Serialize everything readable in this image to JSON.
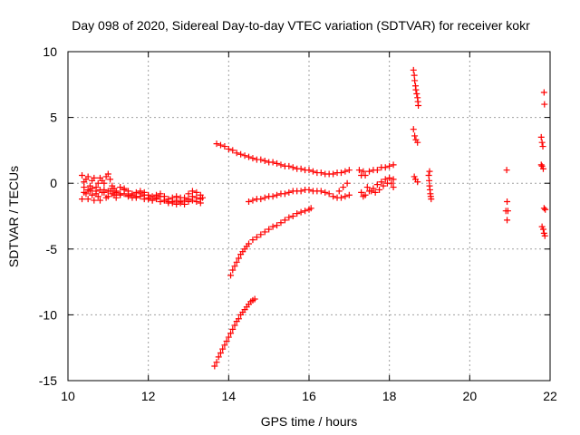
{
  "chart_data": {
    "type": "scatter",
    "title": "Day 098 of 2020, Sidereal Day-to-day VTEC variation (SDTVAR) for receiver kokr",
    "xlabel": "GPS time / hours",
    "ylabel": "SDTVAR / TECUs",
    "xlim": [
      10,
      22
    ],
    "ylim": [
      -15,
      10
    ],
    "xticks": [
      10,
      12,
      14,
      16,
      18,
      20,
      22
    ],
    "yticks": [
      -15,
      -10,
      -5,
      0,
      5,
      10
    ],
    "xtick_labels": [
      "10",
      "12",
      "14",
      "16",
      "18",
      "20",
      "22"
    ],
    "ytick_labels": [
      "-15",
      "-10",
      "-5",
      "0",
      "5",
      "10"
    ],
    "grid": true,
    "marker": "+",
    "color": "#ff0000",
    "series": [
      {
        "points": [
          [
            10.35,
            0.6
          ],
          [
            10.4,
            0.1
          ],
          [
            10.45,
            -0.8
          ],
          [
            10.5,
            -1.2
          ],
          [
            10.55,
            -0.6
          ],
          [
            10.6,
            0.2
          ],
          [
            10.65,
            0.4
          ],
          [
            10.7,
            -0.3
          ],
          [
            10.75,
            -1.0
          ],
          [
            10.8,
            -1.3
          ],
          [
            10.85,
            -0.7
          ],
          [
            10.9,
            0.0
          ],
          [
            10.95,
            0.5
          ],
          [
            11.0,
            0.7
          ],
          [
            11.05,
            0.3
          ],
          [
            11.1,
            -0.4
          ],
          [
            11.15,
            -0.9
          ],
          [
            11.2,
            -1.1
          ],
          [
            11.3,
            -0.8
          ],
          [
            11.4,
            -0.5
          ],
          [
            11.5,
            -0.6
          ],
          [
            11.6,
            -0.8
          ],
          [
            11.7,
            -0.7
          ],
          [
            11.8,
            -0.6
          ],
          [
            11.9,
            -0.7
          ],
          [
            12.0,
            -0.9
          ],
          [
            12.1,
            -1.0
          ],
          [
            12.2,
            -0.9
          ],
          [
            12.3,
            -0.8
          ],
          [
            12.4,
            -1.0
          ],
          [
            12.5,
            -1.2
          ],
          [
            12.6,
            -1.1
          ],
          [
            12.7,
            -1.0
          ],
          [
            12.8,
            -1.1
          ],
          [
            12.9,
            -1.3
          ],
          [
            13.0,
            -1.2
          ],
          [
            13.1,
            -1.0
          ],
          [
            13.2,
            -1.1
          ],
          [
            13.3,
            -1.2
          ]
        ]
      },
      {
        "points": [
          [
            10.35,
            -1.2
          ],
          [
            10.4,
            -0.7
          ],
          [
            10.45,
            0.3
          ],
          [
            10.5,
            0.5
          ],
          [
            10.55,
            -0.2
          ],
          [
            10.6,
            -0.9
          ],
          [
            10.65,
            -1.3
          ],
          [
            10.7,
            -0.8
          ],
          [
            10.75,
            0.0
          ],
          [
            10.8,
            0.4
          ],
          [
            10.85,
            0.2
          ],
          [
            10.9,
            -0.5
          ],
          [
            10.95,
            -1.1
          ],
          [
            11.0,
            -1.0
          ],
          [
            11.05,
            -0.6
          ],
          [
            11.1,
            -0.2
          ],
          [
            11.15,
            -0.4
          ],
          [
            11.2,
            -0.6
          ],
          [
            11.3,
            -0.3
          ],
          [
            11.4,
            -0.4
          ],
          [
            11.5,
            -0.9
          ],
          [
            11.6,
            -1.1
          ],
          [
            11.7,
            -1.0
          ],
          [
            11.8,
            -0.8
          ],
          [
            11.9,
            -0.9
          ],
          [
            12.0,
            -1.2
          ],
          [
            12.1,
            -1.3
          ],
          [
            12.2,
            -1.1
          ],
          [
            12.3,
            -1.0
          ],
          [
            12.4,
            -1.3
          ],
          [
            12.5,
            -1.5
          ],
          [
            12.6,
            -1.4
          ],
          [
            12.7,
            -1.3
          ],
          [
            12.8,
            -1.5
          ],
          [
            12.9,
            -1.6
          ],
          [
            13.0,
            -1.4
          ],
          [
            13.1,
            -1.3
          ],
          [
            13.2,
            -1.4
          ],
          [
            13.3,
            -1.5
          ]
        ]
      },
      {
        "points": [
          [
            10.4,
            -0.3
          ],
          [
            10.5,
            -0.5
          ],
          [
            10.6,
            -0.4
          ],
          [
            10.7,
            -0.6
          ],
          [
            10.8,
            -0.5
          ],
          [
            10.9,
            -0.7
          ],
          [
            11.0,
            -0.6
          ],
          [
            11.1,
            -0.8
          ],
          [
            11.2,
            -0.7
          ],
          [
            11.3,
            -0.9
          ],
          [
            11.4,
            -0.8
          ],
          [
            11.5,
            -1.0
          ],
          [
            11.6,
            -0.9
          ],
          [
            11.7,
            -1.1
          ],
          [
            11.8,
            -1.0
          ],
          [
            11.9,
            -1.2
          ],
          [
            12.0,
            -1.1
          ],
          [
            12.1,
            -1.3
          ],
          [
            12.2,
            -1.2
          ],
          [
            12.3,
            -1.4
          ],
          [
            12.4,
            -1.3
          ],
          [
            12.5,
            -1.4
          ],
          [
            12.6,
            -1.5
          ],
          [
            12.7,
            -1.6
          ],
          [
            12.8,
            -1.4
          ],
          [
            12.9,
            -1.1
          ],
          [
            13.0,
            -0.8
          ],
          [
            13.1,
            -0.6
          ],
          [
            13.2,
            -0.7
          ],
          [
            13.3,
            -0.9
          ],
          [
            13.35,
            -1.1
          ]
        ]
      },
      {
        "points": [
          [
            13.7,
            3.0
          ],
          [
            13.8,
            2.9
          ],
          [
            13.9,
            2.8
          ],
          [
            14.0,
            2.6
          ],
          [
            14.1,
            2.5
          ],
          [
            14.2,
            2.3
          ],
          [
            14.3,
            2.2
          ],
          [
            14.4,
            2.1
          ],
          [
            14.5,
            2.0
          ],
          [
            14.6,
            1.9
          ],
          [
            14.7,
            1.8
          ],
          [
            14.8,
            1.8
          ],
          [
            14.9,
            1.7
          ],
          [
            15.0,
            1.6
          ],
          [
            15.1,
            1.6
          ],
          [
            15.2,
            1.5
          ],
          [
            15.3,
            1.4
          ],
          [
            15.4,
            1.3
          ],
          [
            15.5,
            1.3
          ],
          [
            15.6,
            1.2
          ],
          [
            15.7,
            1.1
          ],
          [
            15.8,
            1.1
          ],
          [
            15.9,
            1.0
          ],
          [
            16.0,
            1.0
          ],
          [
            16.1,
            0.9
          ],
          [
            16.2,
            0.8
          ],
          [
            16.3,
            0.8
          ],
          [
            16.4,
            0.7
          ],
          [
            16.5,
            0.7
          ],
          [
            16.6,
            0.7
          ],
          [
            16.7,
            0.8
          ],
          [
            16.8,
            0.8
          ],
          [
            16.9,
            0.9
          ],
          [
            17.0,
            1.0
          ]
        ]
      },
      {
        "points": [
          [
            14.5,
            -1.4
          ],
          [
            14.6,
            -1.3
          ],
          [
            14.7,
            -1.2
          ],
          [
            14.8,
            -1.2
          ],
          [
            14.9,
            -1.1
          ],
          [
            15.0,
            -1.0
          ],
          [
            15.1,
            -1.0
          ],
          [
            15.2,
            -0.9
          ],
          [
            15.3,
            -0.8
          ],
          [
            15.4,
            -0.8
          ],
          [
            15.5,
            -0.7
          ],
          [
            15.6,
            -0.6
          ],
          [
            15.7,
            -0.6
          ],
          [
            15.8,
            -0.6
          ],
          [
            15.9,
            -0.5
          ],
          [
            16.0,
            -0.5
          ],
          [
            16.1,
            -0.6
          ],
          [
            16.2,
            -0.6
          ],
          [
            16.3,
            -0.6
          ],
          [
            16.4,
            -0.7
          ],
          [
            16.5,
            -0.8
          ],
          [
            16.6,
            -1.0
          ],
          [
            16.7,
            -1.1
          ],
          [
            16.8,
            -1.1
          ],
          [
            16.9,
            -1.0
          ],
          [
            17.0,
            -0.9
          ],
          [
            16.75,
            -0.6
          ],
          [
            16.85,
            -0.3
          ],
          [
            16.95,
            0.0
          ]
        ]
      },
      {
        "points": [
          [
            14.05,
            -7.0
          ],
          [
            14.1,
            -6.6
          ],
          [
            14.15,
            -6.3
          ],
          [
            14.2,
            -6.0
          ],
          [
            14.25,
            -5.7
          ],
          [
            14.3,
            -5.4
          ],
          [
            14.35,
            -5.2
          ],
          [
            14.4,
            -5.0
          ],
          [
            14.45,
            -4.8
          ],
          [
            14.5,
            -4.6
          ],
          [
            14.6,
            -4.3
          ],
          [
            14.7,
            -4.1
          ],
          [
            14.8,
            -3.9
          ],
          [
            14.9,
            -3.7
          ],
          [
            15.0,
            -3.5
          ],
          [
            15.1,
            -3.3
          ],
          [
            15.2,
            -3.2
          ],
          [
            15.3,
            -3.0
          ],
          [
            15.4,
            -2.8
          ],
          [
            15.5,
            -2.6
          ],
          [
            15.6,
            -2.5
          ],
          [
            15.7,
            -2.3
          ],
          [
            15.8,
            -2.2
          ],
          [
            15.9,
            -2.1
          ],
          [
            16.0,
            -2.0
          ],
          [
            16.05,
            -1.9
          ]
        ]
      },
      {
        "points": [
          [
            13.65,
            -13.9
          ],
          [
            13.7,
            -13.6
          ],
          [
            13.75,
            -13.2
          ],
          [
            13.8,
            -12.9
          ],
          [
            13.85,
            -12.6
          ],
          [
            13.9,
            -12.3
          ],
          [
            13.95,
            -12.0
          ],
          [
            14.0,
            -11.7
          ],
          [
            14.05,
            -11.4
          ],
          [
            14.1,
            -11.1
          ],
          [
            14.15,
            -10.8
          ],
          [
            14.2,
            -10.5
          ],
          [
            14.25,
            -10.3
          ],
          [
            14.3,
            -10.0
          ],
          [
            14.35,
            -9.8
          ],
          [
            14.4,
            -9.6
          ],
          [
            14.45,
            -9.4
          ],
          [
            14.5,
            -9.2
          ],
          [
            14.55,
            -9.0
          ],
          [
            14.6,
            -8.9
          ],
          [
            14.65,
            -8.8
          ]
        ]
      },
      {
        "points": [
          [
            17.25,
            1.0
          ],
          [
            17.3,
            0.6
          ],
          [
            17.35,
            0.9
          ],
          [
            17.4,
            0.6
          ],
          [
            17.5,
            0.9
          ],
          [
            17.6,
            1.0
          ],
          [
            17.7,
            1.0
          ],
          [
            17.8,
            1.2
          ],
          [
            17.9,
            1.2
          ],
          [
            18.0,
            1.3
          ],
          [
            18.1,
            1.4
          ],
          [
            17.3,
            -0.7
          ],
          [
            17.35,
            -1.0
          ],
          [
            17.4,
            -0.9
          ],
          [
            17.5,
            -0.6
          ],
          [
            17.6,
            -0.4
          ],
          [
            17.7,
            -0.1
          ],
          [
            17.8,
            0.1
          ],
          [
            17.9,
            0.3
          ],
          [
            18.0,
            0.4
          ],
          [
            18.1,
            0.3
          ],
          [
            17.45,
            -0.3
          ],
          [
            17.55,
            -0.6
          ],
          [
            17.65,
            -0.7
          ],
          [
            17.75,
            -0.5
          ],
          [
            17.85,
            -0.2
          ],
          [
            17.95,
            0.0
          ],
          [
            18.05,
            0.0
          ],
          [
            18.1,
            -0.3
          ]
        ]
      },
      {
        "points": [
          [
            18.6,
            8.6
          ],
          [
            18.62,
            8.2
          ],
          [
            18.63,
            7.8
          ],
          [
            18.65,
            7.4
          ],
          [
            18.66,
            7.1
          ],
          [
            18.68,
            6.8
          ],
          [
            18.7,
            6.5
          ],
          [
            18.71,
            6.2
          ],
          [
            18.72,
            5.9
          ],
          [
            18.6,
            4.1
          ],
          [
            18.63,
            3.6
          ],
          [
            18.66,
            3.3
          ],
          [
            18.7,
            3.1
          ],
          [
            18.62,
            0.5
          ],
          [
            18.65,
            0.3
          ],
          [
            18.7,
            0.1
          ],
          [
            18.98,
            0.6
          ],
          [
            18.99,
            0.2
          ],
          [
            19.0,
            -0.2
          ],
          [
            19.01,
            -0.5
          ],
          [
            19.02,
            -0.8
          ],
          [
            19.03,
            -1.0
          ],
          [
            19.04,
            -1.2
          ],
          [
            19.0,
            0.9
          ]
        ]
      },
      {
        "points": [
          [
            20.92,
            1.0
          ],
          [
            20.93,
            -1.4
          ],
          [
            20.9,
            -2.1
          ],
          [
            20.95,
            -2.1
          ],
          [
            20.93,
            -2.8
          ],
          [
            21.78,
            3.5
          ],
          [
            21.8,
            3.1
          ],
          [
            21.82,
            2.8
          ],
          [
            21.8,
            1.3
          ],
          [
            21.83,
            1.1
          ],
          [
            21.78,
            1.4
          ],
          [
            21.85,
            6.9
          ],
          [
            21.86,
            6.0
          ],
          [
            21.8,
            -3.3
          ],
          [
            21.83,
            -3.5
          ],
          [
            21.85,
            -3.8
          ],
          [
            21.87,
            -4.0
          ],
          [
            21.85,
            -1.9
          ],
          [
            21.88,
            -2.0
          ]
        ]
      }
    ]
  }
}
